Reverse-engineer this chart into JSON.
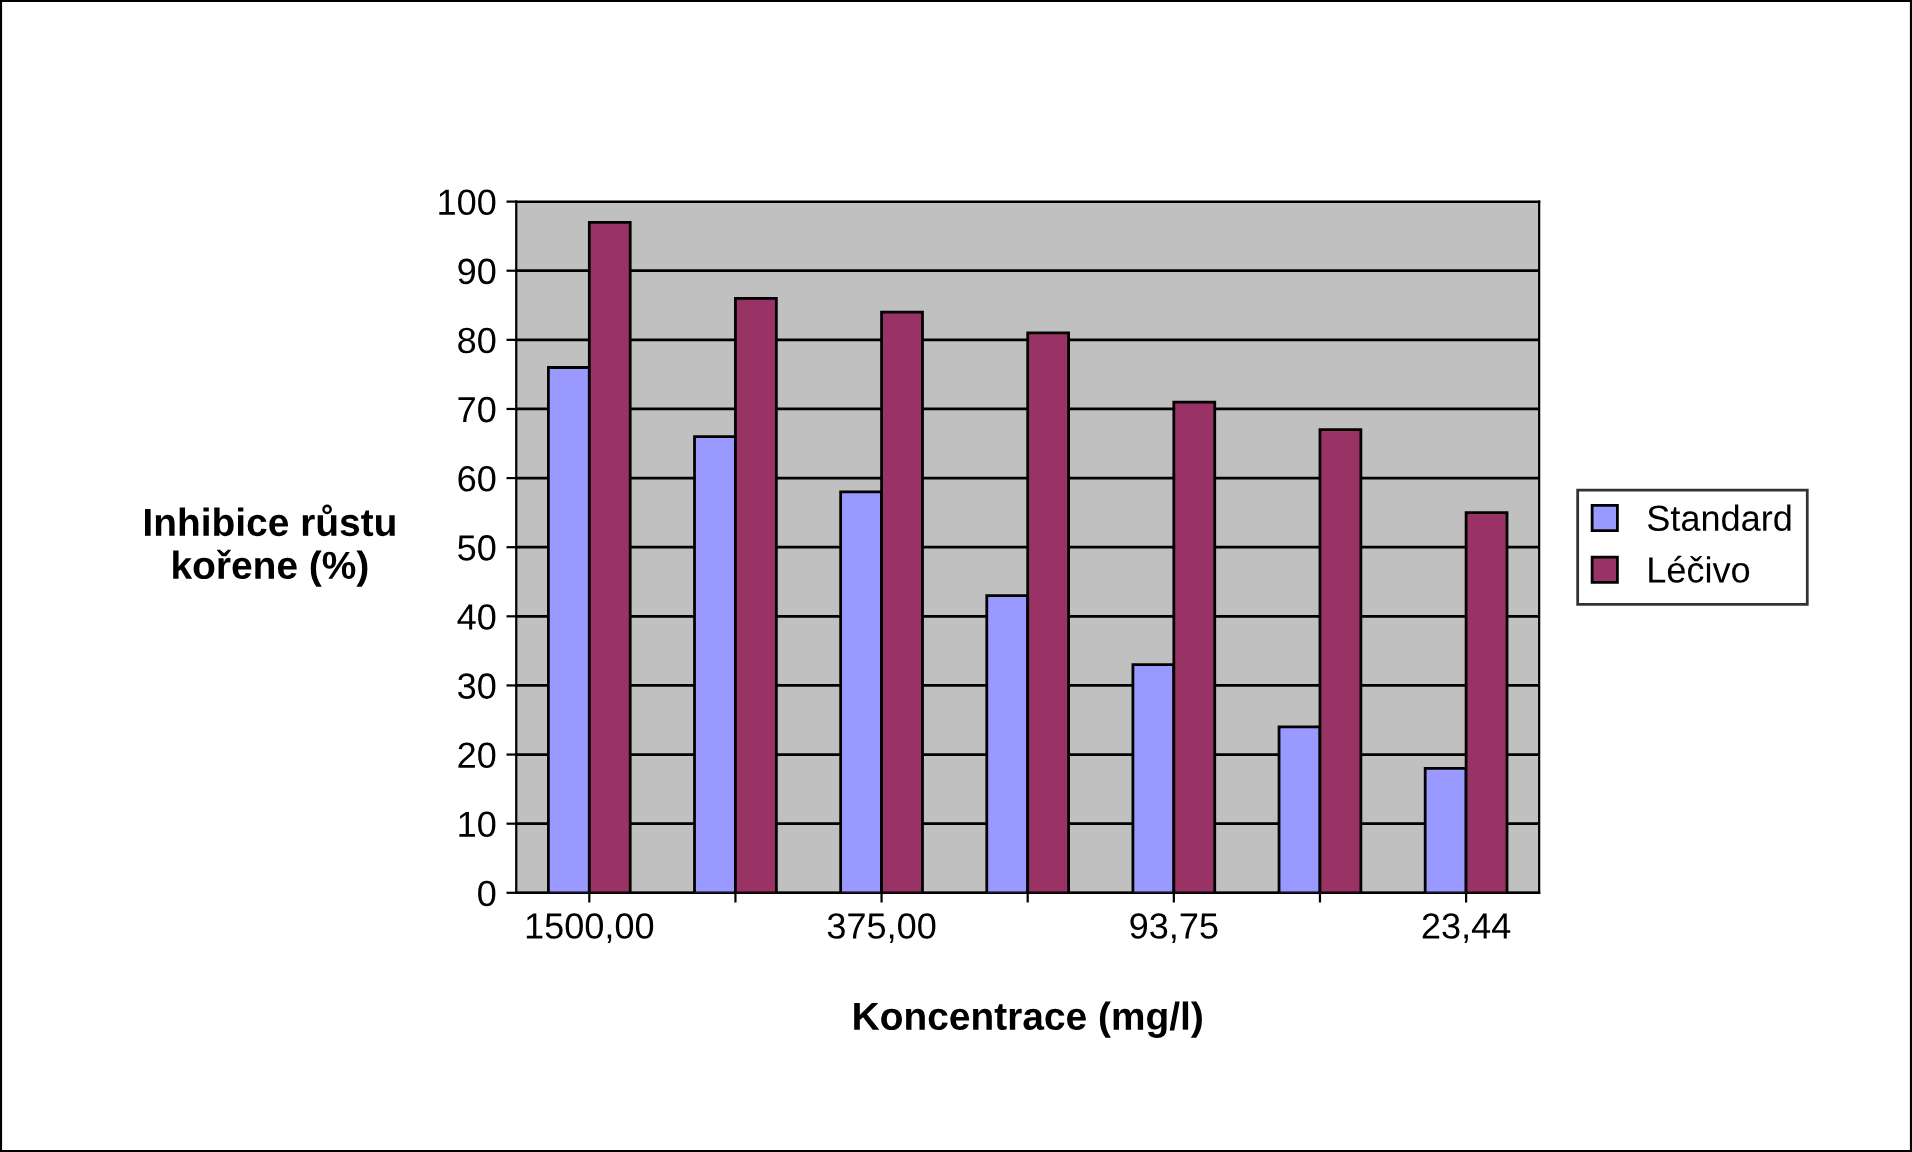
{
  "chart_data": {
    "type": "bar",
    "xlabel": "Koncentrace (mg/l)",
    "ylabel": "Inhibice růstu\nkořene (%)",
    "categories": [
      "1500,00",
      null,
      "375,00",
      null,
      "93,75",
      null,
      "23,44"
    ],
    "series": [
      {
        "name": "Standard",
        "color": "#9999ff",
        "values": [
          76,
          66,
          58,
          43,
          33,
          24,
          18
        ]
      },
      {
        "name": "Léčivo",
        "color": "#993366",
        "values": [
          97,
          86,
          84,
          81,
          71,
          67,
          55
        ]
      }
    ],
    "ylim": [
      0,
      100
    ],
    "yticks": [
      0,
      10,
      20,
      30,
      40,
      50,
      60,
      70,
      80,
      90,
      100
    ],
    "grid": "y",
    "legend": "right"
  }
}
